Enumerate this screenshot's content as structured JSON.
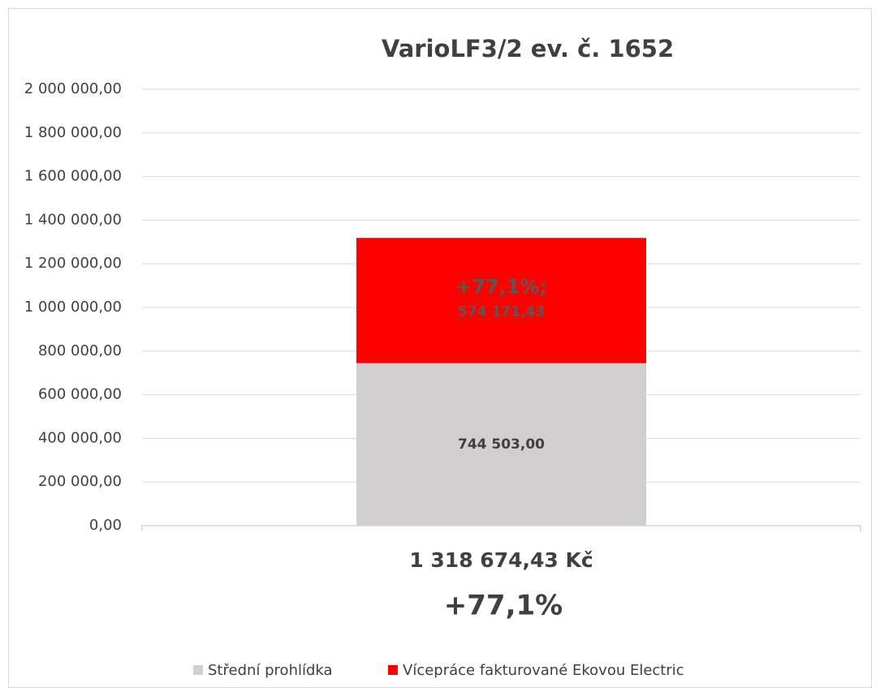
{
  "chart_data": {
    "type": "stacked_bar",
    "title": "VarioLF3/2 ev. č. 1652",
    "categories": [
      "1 318 674,43 Kč"
    ],
    "annotation": "+77,1%",
    "series": [
      {
        "name": "Střední prohlídka",
        "color": "#d0cece",
        "values": [
          744503
        ],
        "value_labels": [
          "744 503,00"
        ]
      },
      {
        "name": "Vícepráce fakturované Ekovou Electric",
        "color": "#ff0000",
        "values": [
          574171.43
        ],
        "value_labels": [
          "574 171,43"
        ],
        "percent_labels": [
          "+77,1%;"
        ]
      }
    ],
    "ylim": [
      0,
      2000000
    ],
    "yticks": [
      {
        "value": 0,
        "label": "0,00"
      },
      {
        "value": 200000,
        "label": "200 000,00"
      },
      {
        "value": 400000,
        "label": "400 000,00"
      },
      {
        "value": 600000,
        "label": "600 000,00"
      },
      {
        "value": 800000,
        "label": "800 000,00"
      },
      {
        "value": 1000000,
        "label": "1 000 000,00"
      },
      {
        "value": 1200000,
        "label": "1 200 000,00"
      },
      {
        "value": 1400000,
        "label": "1 400 000,00"
      },
      {
        "value": 1600000,
        "label": "1 600 000,00"
      },
      {
        "value": 1800000,
        "label": "1 800 000,00"
      },
      {
        "value": 2000000,
        "label": "2 000 000,00"
      }
    ],
    "grid": true,
    "legend": "bottom"
  }
}
